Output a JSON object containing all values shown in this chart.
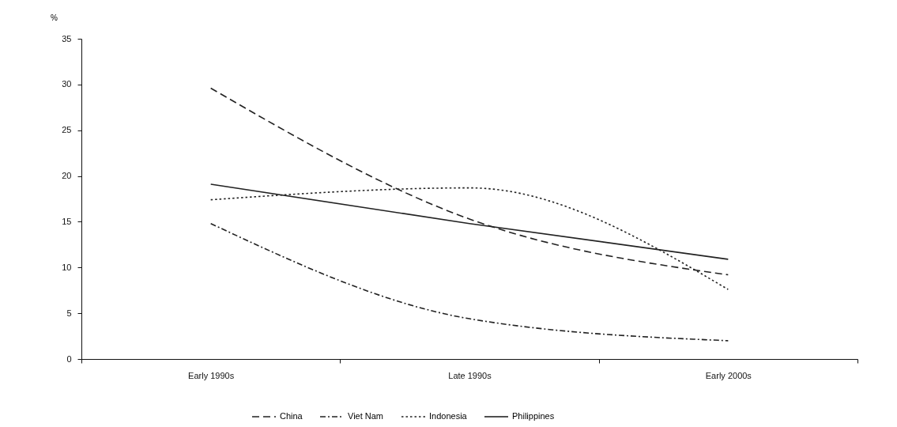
{
  "chart_data": {
    "type": "line",
    "ylabel": "%",
    "categories": [
      "Early 1990s",
      "Late 1990s",
      "Early 2000s"
    ],
    "series": [
      {
        "name": "China",
        "color": "#222222",
        "line_style": "dashed",
        "values": [
          29.6,
          15.3,
          9.2
        ]
      },
      {
        "name": "Viet Nam",
        "color": "#222222",
        "line_style": "dashdot",
        "values": [
          14.8,
          4.4,
          2.0
        ]
      },
      {
        "name": "Indonesia",
        "color": "#222222",
        "line_style": "dotted",
        "values": [
          17.4,
          18.7,
          7.6
        ]
      },
      {
        "name": "Philippines",
        "color": "#222222",
        "line_style": "solid",
        "values": [
          19.1,
          14.8,
          10.9
        ]
      }
    ],
    "ylim": [
      0,
      35
    ],
    "yticks": [
      0,
      5,
      10,
      15,
      20,
      25,
      30,
      35
    ],
    "grid": false,
    "legend": "bottom"
  }
}
